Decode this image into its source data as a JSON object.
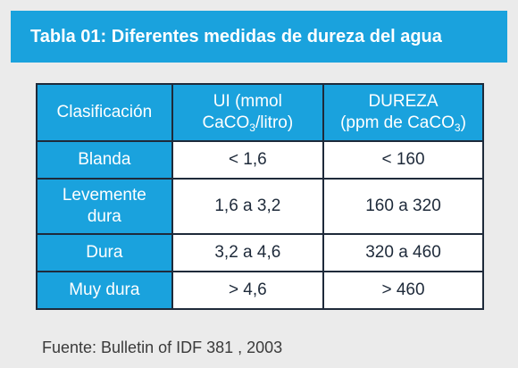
{
  "title": "Tabla 01: Diferentes medidas de dureza del agua",
  "table": {
    "headers": {
      "col1": "Clasificación",
      "col2_line1": "UI (mmol",
      "col2_pre": "CaCO",
      "col2_sub": "3",
      "col2_post": "/litro)",
      "col3_line1": "DUREZA",
      "col3_pre": "(ppm de CaCO",
      "col3_sub": "3",
      "col3_post": ")"
    },
    "rows": [
      {
        "class": "Blanda",
        "ui": "< 1,6",
        "dureza": "< 160"
      },
      {
        "class": "Levemente dura",
        "ui": "1,6 a 3,2",
        "dureza": "160 a 320"
      },
      {
        "class": "Dura",
        "ui": "3,2 a 4,6",
        "dureza": "320 a 460"
      },
      {
        "class": "Muy dura",
        "ui": "> 4,6",
        "dureza": "> 460"
      }
    ]
  },
  "source": "Fuente: Bulletin of IDF 381 , 2003",
  "colors": {
    "accent_blue": "#1aa2dd",
    "border_dark": "#1e2a3a",
    "background": "#ebebeb"
  }
}
